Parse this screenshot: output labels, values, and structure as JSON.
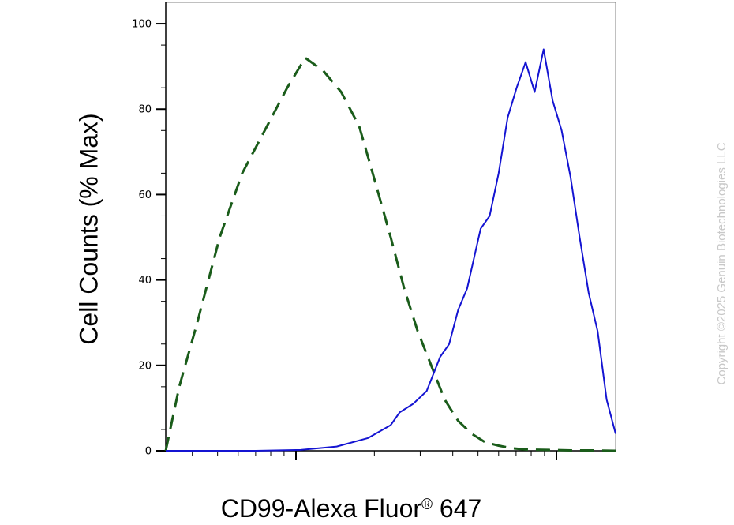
{
  "chart_data": {
    "type": "line",
    "title": "",
    "xlabel": "CD99-Alexa Fluor",
    "xlabel_superscript": "®",
    "xlabel_suffix": " 647",
    "ylabel": "Cell Counts (% Max)",
    "xscale": "log",
    "xlim": [
      0,
      100
    ],
    "ylim": [
      0,
      105
    ],
    "y_ticks": [
      0,
      20,
      40,
      60,
      80,
      100
    ],
    "y_tick_labels": [
      "0",
      "20",
      "40",
      "60",
      "80",
      "100"
    ],
    "grid": false,
    "legend": "none",
    "series": [
      {
        "style": "dashed",
        "color": "#1a5c1a",
        "x": [
          0,
          3,
          7,
          12,
          17,
          22,
          27,
          31,
          35,
          39,
          43,
          46,
          50,
          53,
          56,
          59,
          62,
          65,
          68,
          71,
          74,
          77,
          80,
          85,
          90,
          95,
          100
        ],
        "y": [
          0,
          15,
          30,
          50,
          65,
          75,
          85,
          92,
          89,
          84,
          76,
          65,
          50,
          38,
          28,
          20,
          12,
          7,
          4,
          2,
          1.2,
          0.6,
          0.3,
          0.2,
          0.1,
          0.1,
          0
        ],
        "color_role": "control"
      },
      {
        "style": "solid",
        "color": "#1414d2",
        "x": [
          0,
          20,
          30,
          38,
          45,
          50,
          52,
          55,
          58,
          61,
          63,
          65,
          67,
          70,
          72,
          74,
          76,
          78,
          80,
          82,
          84,
          86,
          88,
          90,
          92,
          94,
          96,
          98,
          100
        ],
        "y": [
          0,
          0,
          0.2,
          1,
          3,
          6,
          9,
          11,
          14,
          22,
          25,
          33,
          38,
          52,
          55,
          65,
          78,
          85,
          91,
          84,
          94,
          82,
          75,
          64,
          50,
          37,
          28,
          12,
          4
        ],
        "color_role": "stained"
      }
    ]
  },
  "watermark": "Copyright ©2025 Genuin Biotechnologies LLC",
  "colors": {
    "axis": "#000000",
    "frame": "#808080",
    "watermark": "#c8c8c8"
  }
}
